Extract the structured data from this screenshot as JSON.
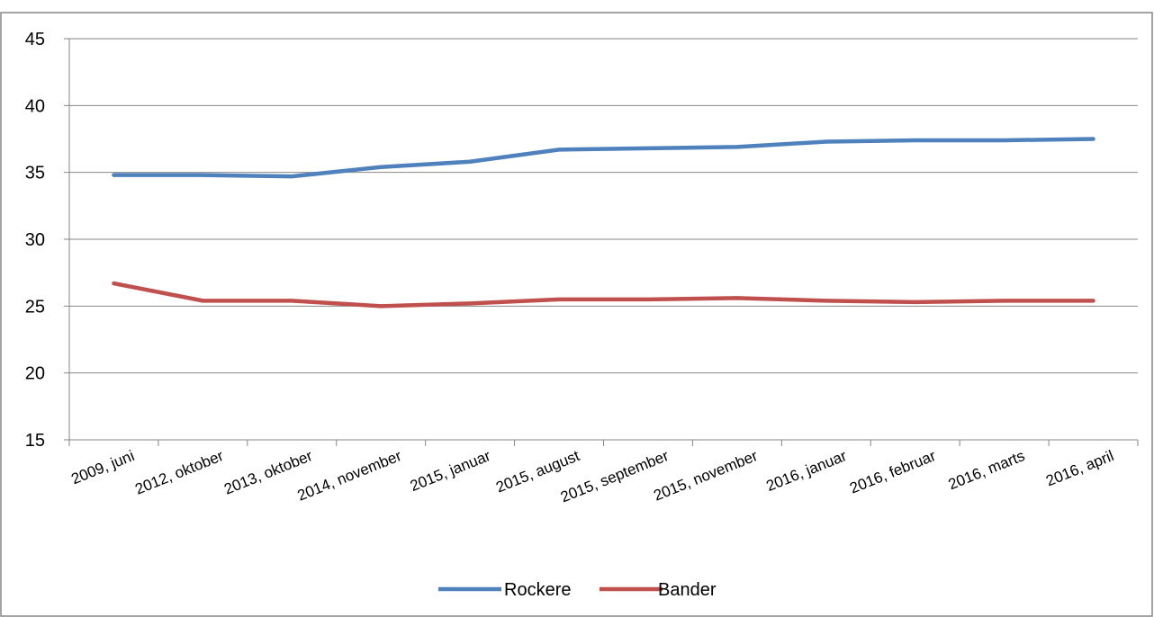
{
  "chart_data": {
    "type": "line",
    "title": "",
    "xlabel": "",
    "ylabel": "",
    "categories": [
      "2009, juni",
      "2012, oktober",
      "2013, oktober",
      "2014, november",
      "2015, januar",
      "2015, august",
      "2015, september",
      "2015, november",
      "2016, januar",
      "2016, februar",
      "2016, marts",
      "2016, april"
    ],
    "y_ticks": [
      "15",
      "20",
      "25",
      "30",
      "35",
      "40",
      "45"
    ],
    "ylim": [
      15,
      45
    ],
    "grid": true,
    "legend_position": "bottom",
    "series": [
      {
        "name": "Rockere",
        "color": "#4F81BD",
        "values": [
          34.8,
          34.8,
          34.7,
          35.4,
          35.8,
          36.7,
          36.8,
          36.9,
          37.3,
          37.4,
          37.4,
          37.5
        ]
      },
      {
        "name": "Bander",
        "color": "#C0504D",
        "values": [
          26.7,
          25.4,
          25.4,
          25.0,
          25.2,
          25.5,
          25.5,
          25.6,
          25.4,
          25.3,
          25.4,
          25.4
        ]
      }
    ]
  }
}
